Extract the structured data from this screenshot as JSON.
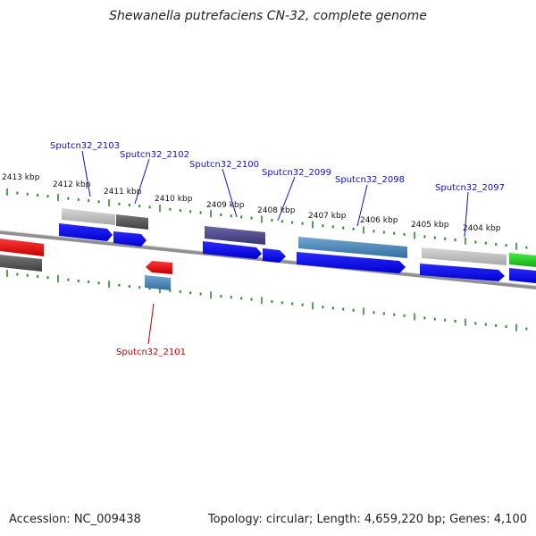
{
  "title": "Shewanella putrefaciens CN-32, complete genome",
  "footer": {
    "accession": "Accession: NC_009438",
    "summary": "Topology: circular; Length: 4,659,220 bp; Genes: 4,100"
  },
  "colors": {
    "backbone": "#8a8a8a",
    "tick": "#2e8b2e",
    "label_blue": "#1010c0",
    "label_red": "#c00000",
    "cds_blue": "#0000ee",
    "light_gray": "#bdbdbd",
    "dark_gray": "#555555",
    "red": "#ee0000",
    "steel_blue": "#4a86b8",
    "purple": "#4a4585",
    "green": "#22cc22"
  },
  "kbp_labels": [
    "2413 kbp",
    "2412 kbp",
    "2411 kbp",
    "2410 kbp",
    "2409 kbp",
    "2408 kbp",
    "2407 kbp",
    "2406 kbp",
    "2405 kbp",
    "2404 kbp"
  ],
  "gene_labels": [
    "Sputcn32_2103",
    "Sputcn32_2102",
    "Sputcn32_2100",
    "Sputcn32_2099",
    "Sputcn32_2098",
    "Sputcn32_2097",
    "Sputcn32_2101"
  ]
}
